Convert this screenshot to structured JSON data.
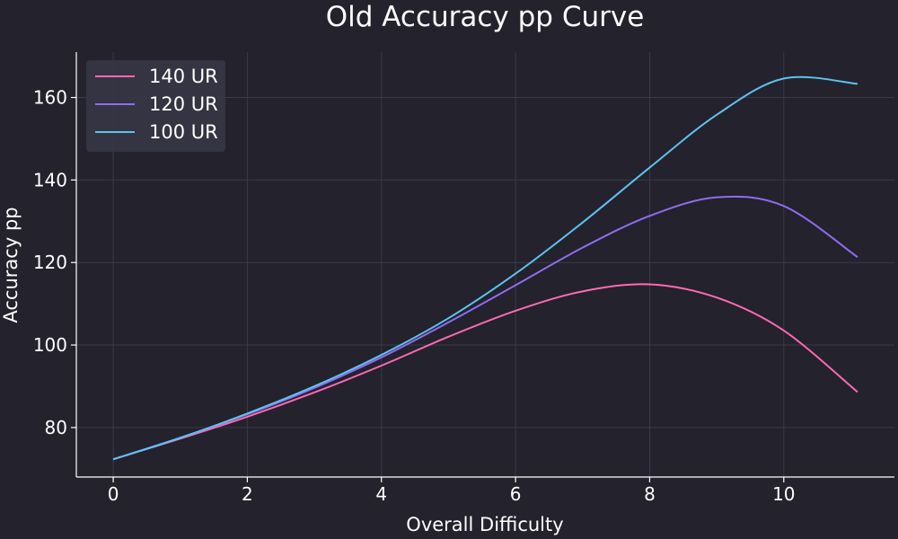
{
  "chart_data": {
    "type": "line",
    "title": "Old Accuracy pp Curve",
    "xlabel": "Overall Difficulty",
    "ylabel": "Accuracy pp",
    "xlim": [
      -0.55,
      11.65
    ],
    "ylim": [
      68,
      171
    ],
    "xticks": [
      0,
      2,
      4,
      6,
      8,
      10
    ],
    "yticks": [
      80,
      100,
      120,
      140,
      160
    ],
    "grid": true,
    "legend_position": "top-left",
    "x": [
      0,
      1,
      2,
      3,
      4,
      5,
      6,
      7,
      8,
      9,
      10,
      11.1
    ],
    "series": [
      {
        "name": "140 UR",
        "color": "#ff69b4",
        "values": [
          72.3,
          77.3,
          82.6,
          88.5,
          95.0,
          102.0,
          108.3,
          113.0,
          114.7,
          111.5,
          103.5,
          88.6
        ]
      },
      {
        "name": "120 UR",
        "color": "#8f6cf0",
        "values": [
          72.3,
          77.5,
          83.2,
          89.6,
          97.0,
          105.5,
          114.5,
          123.6,
          131.3,
          135.8,
          133.7,
          121.3
        ]
      },
      {
        "name": "100 UR",
        "color": "#5ec2f0",
        "values": [
          72.3,
          77.5,
          83.4,
          90.0,
          97.6,
          106.5,
          117.3,
          129.7,
          143.0,
          155.8,
          164.6,
          163.3
        ]
      }
    ]
  }
}
